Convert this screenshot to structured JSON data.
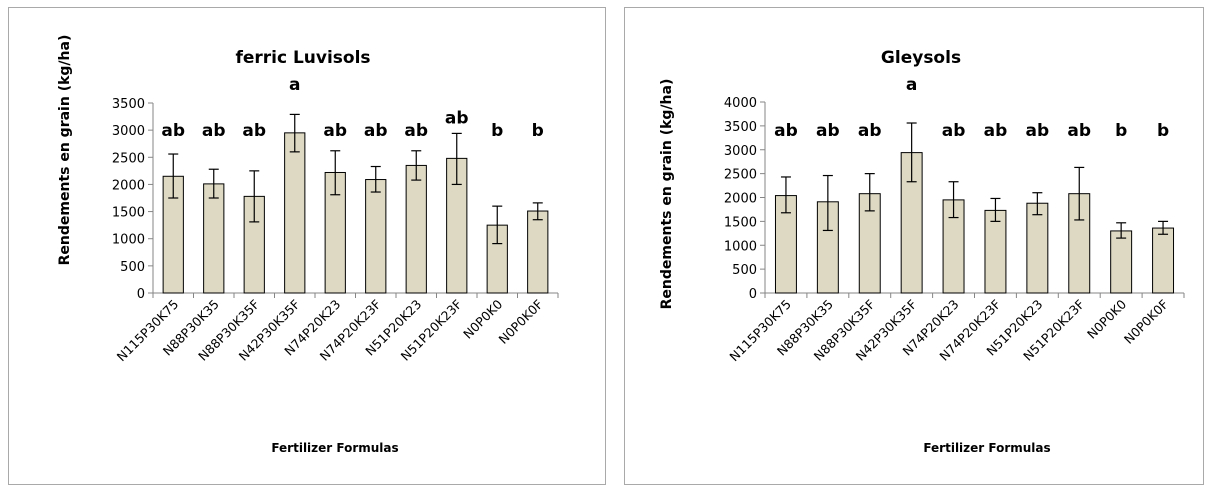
{
  "chart_data": [
    {
      "type": "bar",
      "title": "ferric Luvisols",
      "xlabel": "Fertilizer Formulas",
      "ylabel": "Rendements en grain (kg/ha)",
      "categories": [
        "N115P30K75",
        "N88P30K35",
        "N88P30K35F",
        "N42P30K35F",
        "N74P20K23",
        "N74P20K23F",
        "N51P20K23",
        "N51P20K23F",
        "N0P0K0",
        "N0P0K0F"
      ],
      "values": [
        2150,
        2010,
        1780,
        2950,
        2220,
        2090,
        2350,
        2480,
        1250,
        1510
      ],
      "error_low": [
        1750,
        1750,
        1310,
        2600,
        1810,
        1860,
        2080,
        2000,
        910,
        1350
      ],
      "error_high": [
        2560,
        2280,
        2250,
        3290,
        2620,
        2330,
        2620,
        2940,
        1600,
        1660
      ],
      "significance_letters": [
        "ab",
        "ab",
        "ab",
        "a",
        "ab",
        "ab",
        "ab",
        "ab",
        "b",
        "b"
      ],
      "ylim": [
        0,
        3500
      ],
      "yticks": [
        "0",
        "500",
        "1000",
        "1500",
        "2000",
        "2500",
        "3000",
        "3500"
      ],
      "bar_color": "#ddd9c3",
      "grid": false
    },
    {
      "type": "bar",
      "title": "Gleysols",
      "xlabel": "Fertilizer Formulas",
      "ylabel": "Rendements en grain (kg/ha)",
      "categories": [
        "N115P30K75",
        "N88P30K35",
        "N88P30K35F",
        "N42P30K35F",
        "N74P20K23",
        "N74P20K23F",
        "N51P20K23",
        "N51P20K23F",
        "N0P0K0",
        "N0P0K0F"
      ],
      "values": [
        2040,
        1910,
        2080,
        2940,
        1950,
        1730,
        1880,
        2080,
        1300,
        1360
      ],
      "error_low": [
        1680,
        1310,
        1720,
        2330,
        1580,
        1500,
        1640,
        1530,
        1150,
        1230
      ],
      "error_high": [
        2430,
        2460,
        2500,
        3560,
        2330,
        1980,
        2100,
        2630,
        1470,
        1500
      ],
      "significance_letters": [
        "ab",
        "ab",
        "ab",
        "a",
        "ab",
        "ab",
        "ab",
        "ab",
        "b",
        "b"
      ],
      "ylim": [
        0,
        4000
      ],
      "yticks": [
        "0",
        "500",
        "1000",
        "1500",
        "2000",
        "2500",
        "3000",
        "3500",
        "4000"
      ],
      "bar_color": "#ddd9c3",
      "grid": false
    }
  ]
}
